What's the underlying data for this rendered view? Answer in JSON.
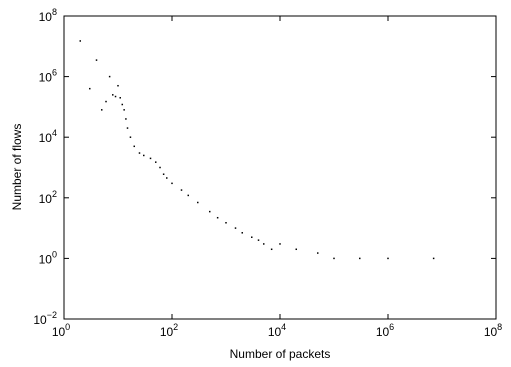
{
  "chart_data": {
    "type": "scatter",
    "title": "",
    "xlabel": "Number of packets",
    "ylabel": "Number of flows",
    "xscale": "log",
    "yscale": "log",
    "xlim": [
      1,
      100000000
    ],
    "ylim": [
      0.01,
      100000000
    ],
    "grid": false,
    "legend": "none",
    "marker_color": "#000000",
    "x_ticks": [
      {
        "base": "10",
        "exp": "0",
        "value": 1
      },
      {
        "base": "10",
        "exp": "2",
        "value": 100
      },
      {
        "base": "10",
        "exp": "4",
        "value": 10000
      },
      {
        "base": "10",
        "exp": "6",
        "value": 1000000
      },
      {
        "base": "10",
        "exp": "8",
        "value": 100000000
      }
    ],
    "y_ticks": [
      {
        "base": "10",
        "exp": "−2",
        "value": 0.01
      },
      {
        "base": "10",
        "exp": "0",
        "value": 1
      },
      {
        "base": "10",
        "exp": "2",
        "value": 100
      },
      {
        "base": "10",
        "exp": "4",
        "value": 10000
      },
      {
        "base": "10",
        "exp": "6",
        "value": 1000000
      },
      {
        "base": "10",
        "exp": "8",
        "value": 100000000
      }
    ],
    "series": [
      {
        "x": [
          2,
          3,
          4,
          5,
          6,
          7,
          8,
          9,
          10,
          11,
          12,
          13,
          14,
          15,
          17,
          20,
          25,
          30,
          40,
          50,
          60,
          70,
          80,
          100,
          150,
          200,
          300,
          500,
          700,
          1000,
          1500,
          2000,
          3000,
          4000,
          5000,
          7000,
          10000,
          20000,
          50000,
          100000,
          300000,
          1000000,
          7000000
        ],
        "y": [
          15000000,
          400000,
          3500000,
          80000,
          150000,
          1000000,
          250000,
          220000,
          500000,
          200000,
          120000,
          80000,
          40000,
          20000,
          10000,
          5000,
          3000,
          2500,
          2000,
          1500,
          1000,
          600,
          450,
          300,
          180,
          120,
          70,
          35,
          22,
          15,
          10,
          7,
          5,
          4,
          3,
          2,
          3,
          2,
          1.5,
          1,
          1,
          1,
          1
        ]
      }
    ]
  }
}
